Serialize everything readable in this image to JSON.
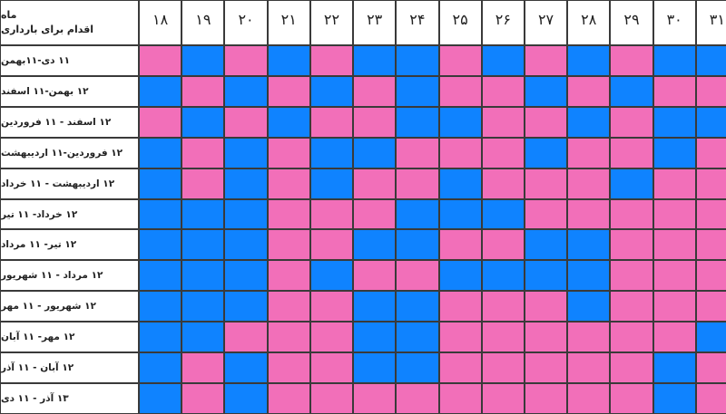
{
  "header": {
    "corner_line1": "ماه",
    "corner_line2": "اقدام برای بارداری"
  },
  "ages": [
    "۱۸",
    "۱۹",
    "۲۰",
    "۲۱",
    "۲۲",
    "۲۳",
    "۲۴",
    "۲۵",
    "۲۶",
    "۲۷",
    "۲۸",
    "۲۹",
    "۳۰",
    "۳۱"
  ],
  "months": [
    "۱۱ دی-۱۱بهمن",
    "۱۲ بهمن-۱۱ اسفند",
    "۱۲ اسفند - ۱۱ فروردین",
    "۱۲ فروردین-۱۱ اردیبهشت",
    "۱۲ اردیبهشت - ۱۱ خرداد",
    "۱۲ خرداد- ۱۱ تیر",
    "۱۲ تیر- ۱۱ مرداد",
    "۱۲ مرداد - ۱۱ شهریور",
    "۱۲ شهریور - ۱۱ مهر",
    "۱۲ مهر- ۱۱ آبان",
    "۱۲ آبان - ۱۱ آذر",
    "۱۳ آذر - ۱۱ دی"
  ],
  "colors": {
    "pink": "#f26fb9",
    "blue": "#0f83ff"
  },
  "grid": [
    "PBPBPBBPBPBPBB",
    "BPBPBPBPPBPBPP",
    "PBPBPPBBPPBPBB",
    "BPBPBBPPPBPPBP",
    "BPBPBPPBPPPBPP",
    "BBBPPPBBBPPPPP",
    "BBBPPBBPPBBPPP",
    "BBBPBPPBBBBPPP",
    "BBBPPBBPPPBPPP",
    "BBPPPBBPPPPPPB",
    "BPBPPBBPPPPPBP",
    "BPBPPPPPPPPPBP"
  ]
}
